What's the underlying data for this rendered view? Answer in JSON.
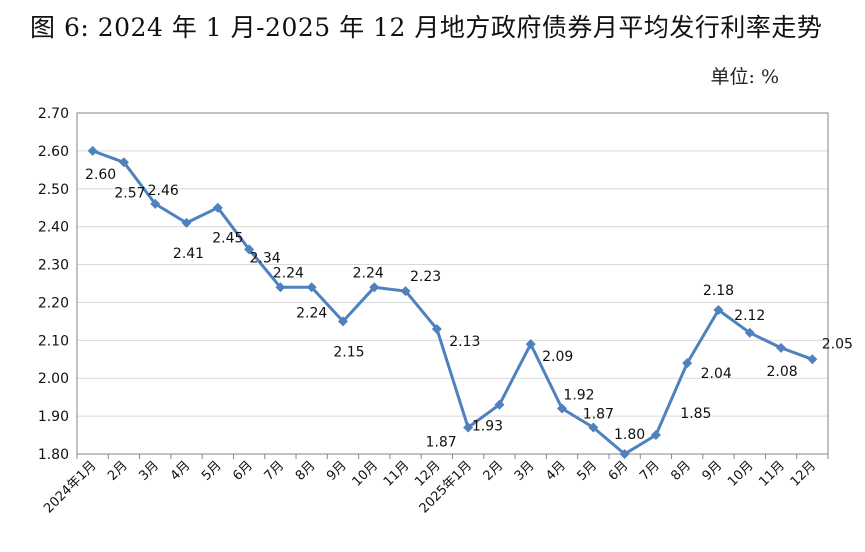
{
  "title": "图 6: 2024 年 1 月-2025 年 12 月地方政府债券月平均发行利率走势",
  "unit_label": "单位: %",
  "chart_data": {
    "type": "line",
    "title": "图 6: 2024 年 1 月-2025 年 12 月地方政府债券月平均发行利率走势",
    "xlabel": "",
    "ylabel": "单位: %",
    "categories": [
      "2024年1月",
      "2月",
      "3月",
      "4月",
      "5月",
      "6月",
      "7月",
      "8月",
      "9月",
      "10月",
      "11月",
      "12月",
      "2025年1月",
      "2月",
      "3月",
      "4月",
      "5月",
      "6月",
      "7月",
      "8月",
      "9月",
      "10月",
      "11月",
      "12月"
    ],
    "values": [
      2.6,
      2.57,
      2.46,
      2.41,
      2.45,
      2.34,
      2.24,
      2.24,
      2.15,
      2.24,
      2.23,
      2.13,
      1.87,
      1.93,
      2.09,
      1.92,
      1.87,
      1.8,
      1.85,
      2.04,
      2.18,
      2.12,
      2.08,
      2.05
    ],
    "data_labels": [
      "2.60",
      "2.57",
      "2.46",
      "2.41",
      "2.45",
      "2.34",
      "2.24",
      "2.24",
      "2.15",
      "2.24",
      "2.23",
      "2.13",
      "1.87",
      "1.93",
      "2.09",
      "1.92",
      "1.87",
      "1.80",
      "1.85",
      "2.04",
      "2.18",
      "2.12",
      "2.08",
      "2.05"
    ],
    "ylim": [
      1.8,
      2.7
    ],
    "yticks": [
      "1.80",
      "1.90",
      "2.00",
      "2.10",
      "2.20",
      "2.30",
      "2.40",
      "2.50",
      "2.60",
      "2.70"
    ],
    "grid": true,
    "legend": "none",
    "colors": {
      "line": "#4F81BD",
      "grid": "#d9d9d9",
      "axis": "#868686"
    }
  }
}
